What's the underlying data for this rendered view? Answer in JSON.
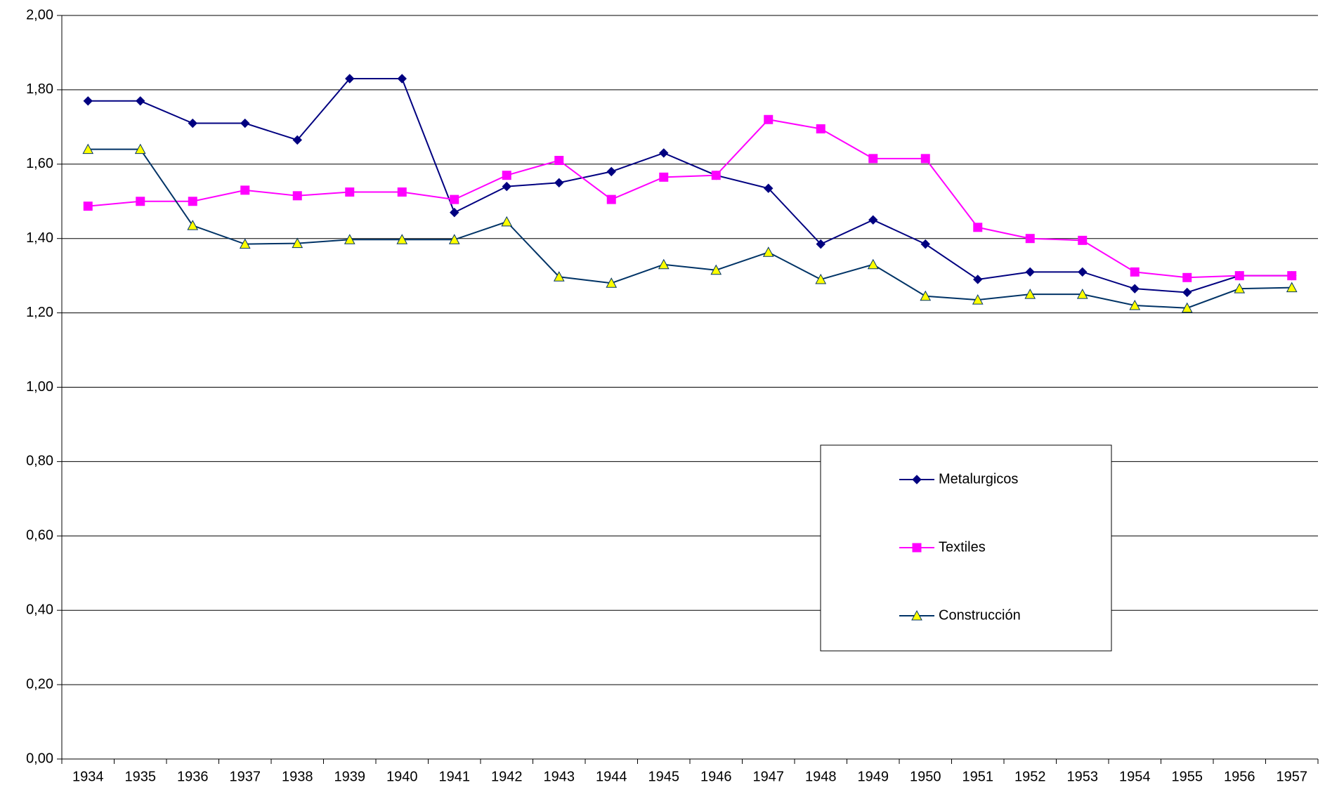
{
  "chart_data": {
    "type": "line",
    "categories": [
      "1934",
      "1935",
      "1936",
      "1937",
      "1938",
      "1939",
      "1940",
      "1941",
      "1942",
      "1943",
      "1944",
      "1945",
      "1946",
      "1947",
      "1948",
      "1949",
      "1950",
      "1951",
      "1952",
      "1953",
      "1954",
      "1955",
      "1956",
      "1957"
    ],
    "series": [
      {
        "name": "Metalurgicos",
        "color": "#000080",
        "marker": "diamond",
        "marker_fill": "#000080",
        "values": [
          1.77,
          1.77,
          1.71,
          1.71,
          1.665,
          1.83,
          1.83,
          1.47,
          1.54,
          1.55,
          1.58,
          1.63,
          1.57,
          1.535,
          1.385,
          1.45,
          1.385,
          1.29,
          1.31,
          1.31,
          1.265,
          1.255,
          1.3,
          1.3
        ]
      },
      {
        "name": "Textiles",
        "color": "#ff00ff",
        "marker": "square",
        "marker_fill": "#ff00ff",
        "values": [
          1.487,
          1.5,
          1.5,
          1.53,
          1.515,
          1.525,
          1.525,
          1.505,
          1.57,
          1.61,
          1.505,
          1.565,
          1.57,
          1.72,
          1.695,
          1.615,
          1.615,
          1.43,
          1.4,
          1.395,
          1.31,
          1.295,
          1.3,
          1.3
        ]
      },
      {
        "name": "Construcción",
        "color": "#003366",
        "marker": "triangle",
        "marker_fill": "#ffff00",
        "values": [
          1.64,
          1.64,
          1.435,
          1.385,
          1.387,
          1.397,
          1.397,
          1.397,
          1.445,
          1.297,
          1.28,
          1.33,
          1.315,
          1.363,
          1.29,
          1.33,
          1.245,
          1.235,
          1.25,
          1.25,
          1.22,
          1.213,
          1.265,
          1.268
        ]
      }
    ],
    "ylim": [
      0,
      2
    ],
    "yticks": [
      {
        "value": 0,
        "label": "0,00"
      },
      {
        "value": 0.2,
        "label": "0,20"
      },
      {
        "value": 0.4,
        "label": "0,40"
      },
      {
        "value": 0.6,
        "label": "0,60"
      },
      {
        "value": 0.8,
        "label": "0,80"
      },
      {
        "value": 1,
        "label": "1,00"
      },
      {
        "value": 1.2,
        "label": "1,20"
      },
      {
        "value": 1.4,
        "label": "1,40"
      },
      {
        "value": 1.6,
        "label": "1,60"
      },
      {
        "value": 1.8,
        "label": "1,80"
      },
      {
        "value": 2,
        "label": "2,00"
      }
    ],
    "grid": true
  }
}
